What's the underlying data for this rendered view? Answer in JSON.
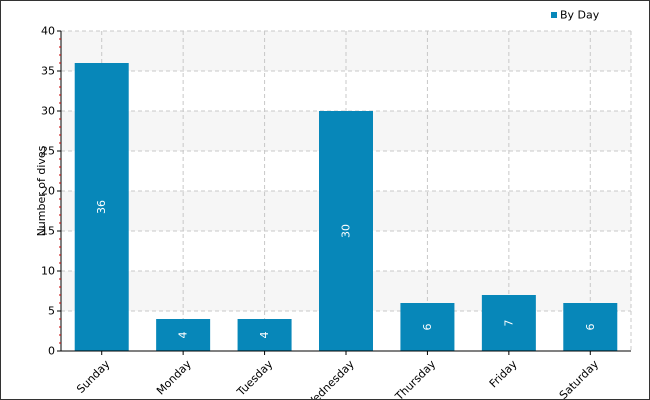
{
  "chart_data": {
    "type": "bar",
    "categories": [
      "Sunday",
      "Monday",
      "Tuesday",
      "Wednesday",
      "Thursday",
      "Friday",
      "Saturday"
    ],
    "series": [
      {
        "name": "By Day",
        "values": [
          36,
          4,
          4,
          30,
          6,
          7,
          6
        ]
      }
    ],
    "xlabel": "",
    "ylabel": "Number of dives",
    "ylim": [
      0,
      40
    ],
    "yticks": [
      0,
      5,
      10,
      15,
      20,
      25,
      30,
      35,
      40
    ],
    "grid": true,
    "legend": "top-right",
    "data_labels": true,
    "bar_color": "#0787b9",
    "band_color": "#f6f6f6",
    "grid_color": "#c8c8c8"
  }
}
